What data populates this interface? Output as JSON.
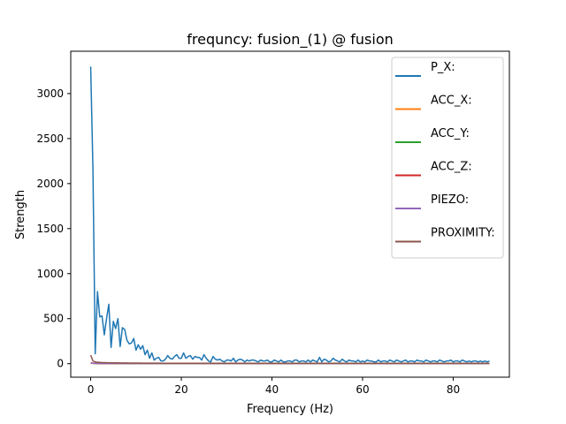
{
  "chart_data": {
    "type": "line",
    "title": "frequncy: fusion_(1) @ fusion",
    "xlabel": "Frequency (Hz)",
    "ylabel": "Strength",
    "xlim": [
      -4.4,
      92.4
    ],
    "ylim": [
      -150,
      3470
    ],
    "xticks": [
      0,
      20,
      40,
      60,
      80
    ],
    "yticks": [
      0,
      500,
      1000,
      1500,
      2000,
      2500,
      3000
    ],
    "grid": false,
    "legend_position": "upper-right",
    "x": [
      0,
      0.5,
      1,
      1.5,
      2,
      2.5,
      3,
      3.5,
      4,
      4.5,
      5,
      5.5,
      6,
      6.5,
      7,
      7.5,
      8,
      8.5,
      9,
      9.5,
      10,
      10.5,
      11,
      11.5,
      12,
      12.5,
      13,
      13.5,
      14,
      14.5,
      15,
      15.5,
      16,
      16.5,
      17,
      17.5,
      18,
      18.5,
      19,
      19.5,
      20,
      20.5,
      21,
      21.5,
      22,
      22.5,
      23,
      23.5,
      24,
      24.5,
      25,
      25.5,
      26,
      26.5,
      27,
      27.5,
      28,
      28.5,
      29,
      29.5,
      30,
      30.5,
      31,
      31.5,
      32,
      32.5,
      33,
      33.5,
      34,
      34.5,
      35,
      35.5,
      36,
      36.5,
      37,
      37.5,
      38,
      38.5,
      39,
      39.5,
      40,
      40.5,
      41,
      41.5,
      42,
      42.5,
      43,
      43.5,
      44,
      44.5,
      45,
      45.5,
      46,
      46.5,
      47,
      47.5,
      48,
      48.5,
      49,
      49.5,
      50,
      50.5,
      51,
      51.5,
      52,
      52.5,
      53,
      53.5,
      54,
      54.5,
      55,
      55.5,
      56,
      56.5,
      57,
      57.5,
      58,
      58.5,
      59,
      59.5,
      60,
      60.5,
      61,
      61.5,
      62,
      62.5,
      63,
      63.5,
      64,
      64.5,
      65,
      65.5,
      66,
      66.5,
      67,
      67.5,
      68,
      68.5,
      69,
      69.5,
      70,
      70.5,
      71,
      71.5,
      72,
      72.5,
      73,
      73.5,
      74,
      74.5,
      75,
      75.5,
      76,
      76.5,
      77,
      77.5,
      78,
      78.5,
      79,
      79.5,
      80,
      80.5,
      81,
      81.5,
      82,
      82.5,
      83,
      83.5,
      84,
      84.5,
      85,
      85.5,
      86,
      86.5,
      87,
      87.5,
      88
    ],
    "series": [
      {
        "name": "P_X:",
        "color": "#1f77b4",
        "values": [
          3300,
          2150,
          110,
          800,
          520,
          530,
          320,
          500,
          660,
          180,
          470,
          390,
          500,
          190,
          400,
          380,
          260,
          220,
          230,
          280,
          150,
          210,
          160,
          200,
          100,
          150,
          60,
          120,
          40,
          60,
          70,
          30,
          30,
          50,
          90,
          60,
          50,
          80,
          100,
          60,
          60,
          120,
          60,
          80,
          90,
          50,
          80,
          70,
          70,
          40,
          100,
          60,
          30,
          20,
          80,
          50,
          40,
          50,
          30,
          20,
          40,
          40,
          30,
          60,
          20,
          40,
          50,
          40,
          20,
          40,
          30,
          40,
          40,
          30,
          20,
          40,
          30,
          30,
          40,
          20,
          20,
          40,
          30,
          20,
          40,
          20,
          20,
          30,
          30,
          20,
          40,
          40,
          20,
          30,
          30,
          20,
          40,
          20,
          40,
          30,
          20,
          70,
          20,
          50,
          40,
          20,
          30,
          60,
          40,
          30,
          20,
          50,
          30,
          20,
          40,
          30,
          30,
          20,
          40,
          20,
          30,
          20,
          40,
          30,
          30,
          20,
          20,
          40,
          20,
          30,
          30,
          20,
          40,
          30,
          20,
          40,
          30,
          20,
          30,
          40,
          20,
          30,
          30,
          20,
          40,
          30,
          30,
          20,
          40,
          30,
          20,
          30,
          30,
          20,
          40,
          30,
          20,
          30,
          30,
          40,
          20,
          30,
          30,
          20,
          40,
          30,
          20,
          30,
          20,
          30,
          30,
          20,
          30,
          20,
          30,
          20,
          30
        ]
      },
      {
        "name": "ACC_X:",
        "color": "#ff7f0e",
        "values": [
          5,
          4,
          3,
          2,
          2,
          3,
          2,
          2,
          2,
          3,
          2,
          2,
          2,
          3,
          2,
          2,
          2,
          2,
          3,
          2,
          2,
          2,
          2,
          2,
          3,
          2,
          2,
          2,
          2,
          2,
          2,
          2,
          2,
          2,
          2,
          2,
          2,
          2,
          2,
          2,
          2,
          2,
          2,
          2,
          2,
          2,
          2,
          2,
          2,
          2,
          2,
          2,
          2,
          2,
          2,
          2,
          2,
          2,
          2,
          2,
          2,
          2,
          2,
          2,
          2,
          2,
          2,
          2,
          2,
          2,
          2,
          2,
          2,
          2,
          2,
          2,
          2,
          2,
          2,
          2,
          2,
          2,
          2,
          2,
          2,
          2,
          2,
          2,
          2,
          2,
          2,
          2,
          2,
          2,
          2,
          2,
          2,
          2,
          2,
          2,
          2,
          2,
          2,
          2,
          2,
          2,
          2,
          2,
          2,
          2,
          2,
          2,
          2,
          2,
          2,
          2,
          2,
          2,
          2,
          2,
          2,
          2,
          2,
          2,
          2,
          2,
          2,
          2,
          2,
          2,
          2,
          2,
          2,
          2,
          2,
          2,
          2,
          2,
          2,
          2,
          2,
          2,
          2,
          2,
          2,
          2,
          2,
          2,
          2,
          2,
          2,
          2,
          2,
          2,
          2,
          2,
          2,
          2,
          2,
          2,
          2,
          2,
          2,
          2,
          2,
          2,
          2,
          2,
          2,
          2,
          2,
          2,
          2,
          2,
          2,
          2,
          2
        ]
      },
      {
        "name": "ACC_Y:",
        "color": "#2ca02c",
        "values": [
          4,
          3,
          2,
          2,
          2,
          2,
          2,
          2,
          2,
          2,
          2,
          2,
          2,
          2,
          2,
          2,
          2,
          2,
          2,
          2,
          2,
          2,
          2,
          2,
          2,
          2,
          2,
          2,
          2,
          2,
          2,
          2,
          2,
          2,
          2,
          2,
          2,
          2,
          2,
          2,
          2,
          2,
          2,
          2,
          2,
          2,
          2,
          2,
          2,
          2,
          2,
          2,
          2,
          2,
          2,
          2,
          2,
          2,
          2,
          2,
          2,
          2,
          2,
          2,
          2,
          2,
          2,
          2,
          2,
          2,
          2,
          2,
          2,
          2,
          2,
          2,
          2,
          2,
          2,
          2,
          2,
          2,
          2,
          2,
          2,
          2,
          2,
          2,
          2,
          2,
          2,
          2,
          2,
          2,
          2,
          2,
          2,
          2,
          2,
          2,
          2,
          2,
          2,
          2,
          2,
          2,
          2,
          2,
          2,
          2,
          2,
          2,
          2,
          2,
          2,
          2,
          2,
          2,
          2,
          2,
          2,
          2,
          2,
          2,
          2,
          2,
          2,
          2,
          2,
          2,
          2,
          2,
          2,
          2,
          2,
          2,
          2,
          2,
          2,
          2,
          2,
          2,
          2,
          2,
          2,
          2,
          2,
          2,
          2,
          2,
          2,
          2,
          2,
          2,
          2,
          2,
          2,
          2,
          2,
          2,
          2,
          2,
          2,
          2,
          2,
          2,
          2,
          2,
          2,
          2,
          2,
          2,
          2,
          2,
          2,
          2,
          2
        ]
      },
      {
        "name": "ACC_Z:",
        "color": "#d62728",
        "values": [
          8,
          6,
          4,
          3,
          3,
          4,
          3,
          3,
          3,
          4,
          3,
          3,
          3,
          3,
          3,
          3,
          3,
          3,
          3,
          3,
          3,
          3,
          3,
          3,
          3,
          3,
          3,
          3,
          3,
          3,
          3,
          3,
          3,
          3,
          3,
          3,
          3,
          3,
          3,
          3,
          3,
          3,
          3,
          3,
          3,
          3,
          3,
          3,
          3,
          3,
          3,
          3,
          3,
          3,
          3,
          3,
          3,
          3,
          3,
          3,
          3,
          3,
          3,
          3,
          3,
          3,
          3,
          3,
          3,
          3,
          3,
          3,
          3,
          3,
          3,
          3,
          3,
          3,
          3,
          3,
          3,
          3,
          3,
          3,
          3,
          3,
          3,
          3,
          3,
          3,
          3,
          3,
          3,
          3,
          3,
          3,
          3,
          3,
          3,
          3,
          3,
          3,
          3,
          3,
          3,
          3,
          3,
          3,
          3,
          3,
          3,
          3,
          3,
          3,
          3,
          3,
          3,
          3,
          3,
          3,
          3,
          3,
          3,
          3,
          3,
          3,
          3,
          3,
          3,
          3,
          3,
          3,
          3,
          3,
          3,
          3,
          3,
          3,
          3,
          3,
          3,
          3,
          3,
          3,
          3,
          3,
          3,
          3,
          3,
          3,
          3,
          3,
          3,
          3,
          3,
          3,
          3,
          3,
          3,
          3,
          3,
          3,
          3,
          3,
          3,
          3,
          3,
          3,
          3,
          3,
          3,
          3,
          3,
          3,
          3,
          3,
          3
        ]
      },
      {
        "name": "PIEZO:",
        "color": "#9467bd",
        "values": [
          6,
          4,
          3,
          3,
          2,
          3,
          2,
          2,
          3,
          2,
          2,
          2,
          2,
          2,
          2,
          2,
          2,
          2,
          2,
          2,
          2,
          2,
          2,
          2,
          2,
          2,
          2,
          2,
          2,
          2,
          2,
          2,
          2,
          2,
          2,
          2,
          2,
          2,
          2,
          2,
          2,
          2,
          2,
          2,
          2,
          2,
          2,
          2,
          2,
          2,
          2,
          2,
          2,
          2,
          2,
          2,
          2,
          2,
          2,
          2,
          2,
          2,
          2,
          2,
          2,
          2,
          2,
          2,
          2,
          2,
          2,
          2,
          2,
          2,
          2,
          2,
          2,
          2,
          2,
          2,
          2,
          2,
          2,
          2,
          2,
          2,
          2,
          2,
          2,
          2,
          2,
          2,
          2,
          2,
          2,
          2,
          2,
          2,
          2,
          2,
          2,
          2,
          2,
          2,
          2,
          2,
          2,
          2,
          2,
          2,
          2,
          2,
          2,
          2,
          2,
          2,
          2,
          2,
          2,
          2,
          2,
          2,
          2,
          2,
          2,
          2,
          2,
          2,
          2,
          2,
          2,
          2,
          2,
          2,
          2,
          2,
          2,
          2,
          2,
          2,
          2,
          2,
          2,
          2,
          2,
          2,
          2,
          2,
          2,
          2,
          2,
          2,
          2,
          2,
          2,
          2,
          2,
          2,
          2,
          2,
          2,
          2,
          2,
          2,
          2,
          2,
          2,
          2,
          2,
          2,
          2,
          2,
          2,
          2,
          2,
          2,
          2
        ]
      },
      {
        "name": "PROXIMITY:",
        "color": "#8c564b",
        "values": [
          95,
          30,
          20,
          15,
          14,
          12,
          12,
          11,
          10,
          10,
          9,
          9,
          9,
          8,
          8,
          8,
          8,
          7,
          7,
          7,
          7,
          7,
          7,
          6,
          6,
          6,
          6,
          6,
          6,
          6,
          6,
          5,
          5,
          5,
          5,
          5,
          5,
          5,
          5,
          5,
          5,
          5,
          5,
          5,
          5,
          5,
          5,
          5,
          5,
          5,
          5,
          5,
          5,
          5,
          5,
          4,
          4,
          4,
          4,
          4,
          4,
          4,
          4,
          4,
          4,
          4,
          4,
          4,
          4,
          4,
          4,
          4,
          4,
          4,
          4,
          4,
          4,
          4,
          4,
          4,
          4,
          4,
          4,
          4,
          4,
          4,
          4,
          4,
          4,
          4,
          4,
          4,
          4,
          4,
          4,
          4,
          4,
          4,
          4,
          4,
          4,
          4,
          4,
          4,
          4,
          4,
          4,
          4,
          4,
          4,
          4,
          4,
          4,
          4,
          4,
          4,
          4,
          4,
          4,
          4,
          4,
          4,
          4,
          4,
          4,
          4,
          4,
          4,
          4,
          4,
          4,
          4,
          4,
          4,
          4,
          4,
          4,
          4,
          4,
          4,
          4,
          4,
          4,
          4,
          4,
          4,
          4,
          4,
          4,
          4,
          4,
          4,
          4,
          4,
          4,
          4,
          4,
          4,
          4,
          4,
          4,
          4,
          4,
          4,
          4,
          4,
          4,
          4,
          4,
          4,
          4,
          4,
          4,
          4,
          4,
          4,
          4
        ]
      }
    ]
  }
}
